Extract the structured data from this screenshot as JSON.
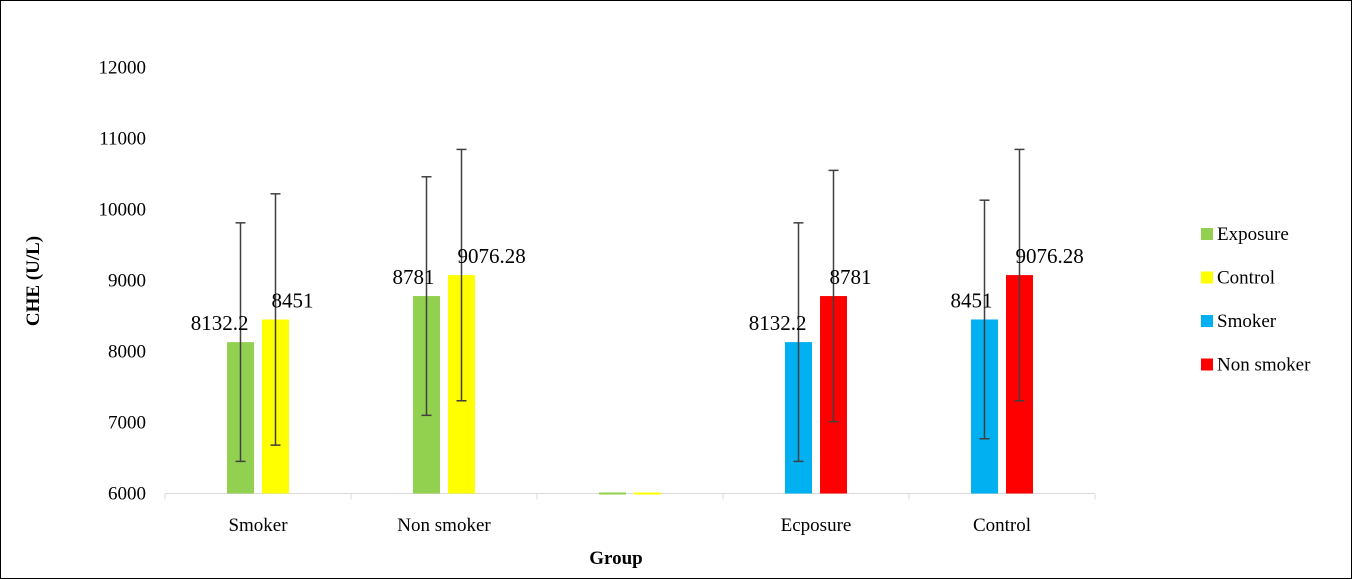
{
  "chart_data": {
    "type": "bar",
    "title": "",
    "xlabel": "Group",
    "ylabel": "CHE (U/L)",
    "ylim": [
      6000,
      12000
    ],
    "yticks": [
      6000,
      7000,
      8000,
      9000,
      10000,
      11000,
      12000
    ],
    "grid": false,
    "legend_position": "right",
    "categories": [
      "Smoker",
      "Non smoker",
      "",
      "Ecposure",
      "Control"
    ],
    "series": [
      {
        "name": "Exposure",
        "color": "#92D050",
        "values": [
          8132.2,
          8781,
          6000,
          null,
          null
        ],
        "labels": [
          "8132.2",
          "8781",
          "",
          "",
          ""
        ],
        "errors": [
          1680,
          1680,
          null,
          null,
          null
        ]
      },
      {
        "name": "Control",
        "color": "#FFFF00",
        "values": [
          8451,
          9076.28,
          6000,
          null,
          null
        ],
        "labels": [
          "8451",
          "9076.28",
          "",
          "",
          ""
        ],
        "errors": [
          1770,
          1770,
          null,
          null,
          null
        ]
      },
      {
        "name": "Smoker",
        "color": "#00B0F0",
        "values": [
          null,
          null,
          null,
          8132.2,
          8451
        ],
        "labels": [
          "",
          "",
          "",
          "8132.2",
          "8451"
        ],
        "errors": [
          null,
          null,
          null,
          1680,
          1680
        ]
      },
      {
        "name": "Non smoker",
        "color": "#FF0000",
        "values": [
          null,
          null,
          null,
          8781,
          9076.28
        ],
        "labels": [
          "",
          "",
          "",
          "8781",
          "9076.28"
        ],
        "errors": [
          null,
          null,
          null,
          1770,
          1770
        ]
      }
    ]
  }
}
